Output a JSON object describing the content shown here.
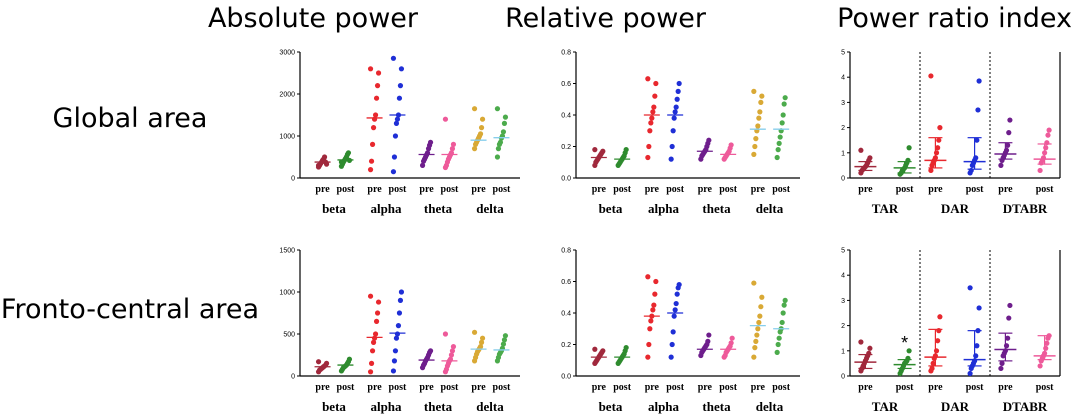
{
  "column_titles": [
    "Absolute power",
    "Relative power",
    "Power ratio index"
  ],
  "row_labels": [
    "Global area",
    "Fronto-central area"
  ],
  "colors": {
    "beta_pre": "#a0283c",
    "beta_post": "#2e8b2e",
    "alpha_pre": "#e8282e",
    "alpha_post": "#1f2fd6",
    "theta_pre": "#6e1e8c",
    "theta_post": "#ee5a9a",
    "delta_pre": "#d9a935",
    "delta_post": "#4cab4c",
    "mean_line": "#87ceeb"
  },
  "chart_data": [
    {
      "type": "scatter",
      "title": "Absolute power",
      "row": "Global area",
      "ylim": [
        0,
        3000
      ],
      "yticks": [
        "0",
        "1000",
        "2000",
        "3000"
      ],
      "groups": [
        "beta",
        "alpha",
        "theta",
        "delta"
      ],
      "sublabels": [
        "pre",
        "post"
      ],
      "series": [
        {
          "name": "beta pre",
          "values": [
            260,
            300,
            340,
            380,
            420,
            450,
            500,
            380,
            330,
            300
          ],
          "mean": 380
        },
        {
          "name": "beta post",
          "values": [
            280,
            330,
            380,
            420,
            460,
            500,
            560,
            600,
            420,
            380
          ],
          "mean": 430
        },
        {
          "name": "alpha pre",
          "values": [
            200,
            400,
            800,
            1200,
            1400,
            1500,
            1900,
            2200,
            2500,
            2600
          ],
          "mean": 1430
        },
        {
          "name": "alpha post",
          "values": [
            150,
            500,
            1000,
            1300,
            1400,
            1500,
            1900,
            2200,
            2600,
            2850
          ],
          "mean": 1500
        },
        {
          "name": "theta pre",
          "values": [
            300,
            400,
            450,
            500,
            550,
            600,
            700,
            780,
            850
          ],
          "mean": 560
        },
        {
          "name": "theta post",
          "values": [
            250,
            300,
            380,
            450,
            500,
            550,
            600,
            700,
            800,
            1400
          ],
          "mean": 560
        },
        {
          "name": "delta pre",
          "values": [
            700,
            800,
            850,
            900,
            950,
            1000,
            1050,
            1200,
            1400,
            1650
          ],
          "mean": 900
        },
        {
          "name": "delta post",
          "values": [
            500,
            700,
            800,
            850,
            950,
            1000,
            1100,
            1300,
            1450,
            1650
          ],
          "mean": 960
        }
      ]
    },
    {
      "type": "scatter",
      "title": "Relative power",
      "row": "Global area",
      "ylim": [
        0,
        0.8
      ],
      "yticks": [
        "0.0",
        "0.2",
        "0.4",
        "0.6",
        "0.8"
      ],
      "groups": [
        "beta",
        "alpha",
        "theta",
        "delta"
      ],
      "sublabels": [
        "pre",
        "post"
      ],
      "series": [
        {
          "name": "beta pre",
          "values": [
            0.08,
            0.1,
            0.11,
            0.12,
            0.13,
            0.14,
            0.15,
            0.16,
            0.17,
            0.18
          ],
          "mean": 0.13
        },
        {
          "name": "beta post",
          "values": [
            0.08,
            0.09,
            0.1,
            0.11,
            0.12,
            0.13,
            0.14,
            0.16,
            0.18
          ],
          "mean": 0.12
        },
        {
          "name": "alpha pre",
          "values": [
            0.13,
            0.2,
            0.3,
            0.35,
            0.38,
            0.42,
            0.45,
            0.52,
            0.6,
            0.63
          ],
          "mean": 0.4
        },
        {
          "name": "alpha post",
          "values": [
            0.12,
            0.2,
            0.3,
            0.38,
            0.42,
            0.45,
            0.5,
            0.55,
            0.6
          ],
          "mean": 0.4
        },
        {
          "name": "theta pre",
          "values": [
            0.12,
            0.14,
            0.15,
            0.16,
            0.17,
            0.18,
            0.2,
            0.22,
            0.24
          ],
          "mean": 0.17
        },
        {
          "name": "theta post",
          "values": [
            0.12,
            0.13,
            0.14,
            0.15,
            0.16,
            0.17,
            0.19,
            0.21
          ],
          "mean": 0.15
        },
        {
          "name": "delta pre",
          "values": [
            0.15,
            0.2,
            0.25,
            0.3,
            0.33,
            0.38,
            0.42,
            0.48,
            0.52,
            0.55
          ],
          "mean": 0.31
        },
        {
          "name": "delta post",
          "values": [
            0.13,
            0.18,
            0.22,
            0.26,
            0.3,
            0.35,
            0.4,
            0.47,
            0.51
          ],
          "mean": 0.31
        }
      ]
    },
    {
      "type": "scatter",
      "title": "Power ratio index",
      "row": "Global area",
      "ylim": [
        0,
        5
      ],
      "yticks": [
        "0",
        "1",
        "2",
        "3",
        "4",
        "5"
      ],
      "groups": [
        "TAR",
        "DAR",
        "DTABR"
      ],
      "sublabels": [
        "pre",
        "post"
      ],
      "series": [
        {
          "name": "TAR pre",
          "values": [
            0.2,
            0.3,
            0.35,
            0.4,
            0.45,
            0.5,
            0.6,
            0.7,
            0.8,
            1.1
          ],
          "median": 0.45,
          "q1": 0.3,
          "q3": 0.65
        },
        {
          "name": "TAR post",
          "values": [
            0.15,
            0.2,
            0.3,
            0.35,
            0.4,
            0.5,
            0.6,
            0.7,
            1.2
          ],
          "median": 0.4,
          "q1": 0.2,
          "q3": 0.65
        },
        {
          "name": "DAR pre",
          "values": [
            0.3,
            0.5,
            0.6,
            0.7,
            0.8,
            1.0,
            1.2,
            1.5,
            2.0,
            4.05
          ],
          "median": 0.7,
          "q1": 0.4,
          "q3": 1.6
        },
        {
          "name": "DAR post",
          "values": [
            0.2,
            0.3,
            0.5,
            0.6,
            0.7,
            0.8,
            1.5,
            2.7,
            3.85
          ],
          "median": 0.65,
          "q1": 0.35,
          "q3": 1.6
        },
        {
          "name": "DTABR pre",
          "values": [
            0.5,
            0.7,
            0.8,
            0.9,
            1.0,
            1.1,
            1.3,
            1.8,
            2.3
          ],
          "median": 0.95,
          "q1": 0.75,
          "q3": 1.4
        },
        {
          "name": "DTABR post",
          "values": [
            0.3,
            0.6,
            0.7,
            0.8,
            1.0,
            1.2,
            1.4,
            1.7,
            1.9
          ],
          "median": 0.75,
          "q1": 0.55,
          "q3": 1.35
        }
      ]
    },
    {
      "type": "scatter",
      "title": "Absolute power",
      "row": "Fronto-central area",
      "ylim": [
        0,
        1500
      ],
      "yticks": [
        "0",
        "500",
        "1000",
        "1500"
      ],
      "groups": [
        "beta",
        "alpha",
        "theta",
        "delta"
      ],
      "sublabels": [
        "pre",
        "post"
      ],
      "series": [
        {
          "name": "beta pre",
          "values": [
            50,
            70,
            80,
            90,
            100,
            110,
            120,
            130,
            150,
            170
          ],
          "mean": 110
        },
        {
          "name": "beta post",
          "values": [
            60,
            80,
            100,
            110,
            120,
            130,
            150,
            170,
            200
          ],
          "mean": 130
        },
        {
          "name": "alpha pre",
          "values": [
            50,
            150,
            300,
            400,
            450,
            500,
            650,
            750,
            880,
            950
          ],
          "mean": 460
        },
        {
          "name": "alpha post",
          "values": [
            60,
            180,
            300,
            450,
            500,
            600,
            750,
            900,
            1000
          ],
          "mean": 510
        },
        {
          "name": "theta pre",
          "values": [
            100,
            130,
            150,
            180,
            200,
            220,
            250,
            280,
            300
          ],
          "mean": 190
        },
        {
          "name": "theta post",
          "values": [
            50,
            80,
            120,
            150,
            180,
            200,
            250,
            300,
            350,
            500
          ],
          "mean": 180
        },
        {
          "name": "delta pre",
          "values": [
            180,
            220,
            260,
            290,
            310,
            330,
            350,
            400,
            450,
            520
          ],
          "mean": 320
        },
        {
          "name": "delta post",
          "values": [
            180,
            220,
            260,
            280,
            300,
            330,
            380,
            430,
            480
          ],
          "mean": 310
        }
      ]
    },
    {
      "type": "scatter",
      "title": "Relative power",
      "row": "Fronto-central area",
      "ylim": [
        0,
        0.8
      ],
      "yticks": [
        "0.0",
        "0.2",
        "0.4",
        "0.6",
        "0.8"
      ],
      "groups": [
        "beta",
        "alpha",
        "theta",
        "delta"
      ],
      "sublabels": [
        "pre",
        "post"
      ],
      "series": [
        {
          "name": "beta pre",
          "values": [
            0.08,
            0.09,
            0.1,
            0.11,
            0.12,
            0.13,
            0.14,
            0.15,
            0.16,
            0.17
          ],
          "mean": 0.12
        },
        {
          "name": "beta post",
          "values": [
            0.08,
            0.09,
            0.1,
            0.11,
            0.12,
            0.13,
            0.14,
            0.16,
            0.18
          ],
          "mean": 0.12
        },
        {
          "name": "alpha pre",
          "values": [
            0.12,
            0.2,
            0.3,
            0.35,
            0.38,
            0.42,
            0.45,
            0.52,
            0.6,
            0.63
          ],
          "mean": 0.38
        },
        {
          "name": "alpha post",
          "values": [
            0.12,
            0.2,
            0.28,
            0.38,
            0.42,
            0.46,
            0.52,
            0.56,
            0.58
          ],
          "mean": 0.4
        },
        {
          "name": "theta pre",
          "values": [
            0.13,
            0.15,
            0.16,
            0.17,
            0.18,
            0.19,
            0.2,
            0.22,
            0.26
          ],
          "mean": 0.17
        },
        {
          "name": "theta post",
          "values": [
            0.12,
            0.13,
            0.15,
            0.16,
            0.17,
            0.18,
            0.19,
            0.21,
            0.24
          ],
          "mean": 0.17
        },
        {
          "name": "delta pre",
          "values": [
            0.12,
            0.18,
            0.22,
            0.26,
            0.3,
            0.34,
            0.38,
            0.44,
            0.5,
            0.59
          ],
          "mean": 0.32
        },
        {
          "name": "delta post",
          "values": [
            0.15,
            0.2,
            0.24,
            0.28,
            0.3,
            0.34,
            0.4,
            0.45,
            0.48
          ],
          "mean": 0.3
        }
      ]
    },
    {
      "type": "scatter",
      "title": "Power ratio index",
      "row": "Fronto-central area",
      "ylim": [
        0,
        5
      ],
      "yticks": [
        "0",
        "1",
        "2",
        "3",
        "4",
        "5"
      ],
      "groups": [
        "TAR",
        "DAR",
        "DTABR"
      ],
      "sublabels": [
        "pre",
        "post"
      ],
      "series": [
        {
          "name": "TAR pre",
          "values": [
            0.2,
            0.3,
            0.4,
            0.5,
            0.6,
            0.7,
            0.8,
            0.9,
            1.1,
            1.35
          ],
          "median": 0.55,
          "q1": 0.3,
          "q3": 0.85
        },
        {
          "name": "TAR post",
          "values": [
            0.1,
            0.2,
            0.3,
            0.4,
            0.5,
            0.55,
            0.6,
            0.7,
            1.0
          ],
          "median": 0.45,
          "q1": 0.3,
          "q3": 0.65
        },
        {
          "name": "DAR pre",
          "values": [
            0.2,
            0.3,
            0.5,
            0.7,
            0.8,
            1.0,
            1.4,
            1.8,
            2.35
          ],
          "median": 0.75,
          "q1": 0.4,
          "q3": 1.85
        },
        {
          "name": "DAR post",
          "values": [
            0.1,
            0.3,
            0.4,
            0.5,
            0.6,
            0.8,
            1.2,
            1.8,
            2.7,
            3.5
          ],
          "median": 0.65,
          "q1": 0.4,
          "q3": 1.8
        },
        {
          "name": "DTABR pre",
          "values": [
            0.3,
            0.5,
            0.8,
            0.9,
            1.0,
            1.2,
            1.5,
            2.3,
            2.8
          ],
          "median": 1.05,
          "q1": 0.6,
          "q3": 1.7
        },
        {
          "name": "DTABR post",
          "values": [
            0.4,
            0.6,
            0.7,
            0.8,
            0.9,
            1.1,
            1.3,
            1.5,
            1.6
          ],
          "median": 0.8,
          "q1": 0.65,
          "q3": 1.6
        }
      ],
      "annotations": [
        {
          "text": "*",
          "group": "TAR",
          "sub": "post"
        }
      ]
    }
  ]
}
